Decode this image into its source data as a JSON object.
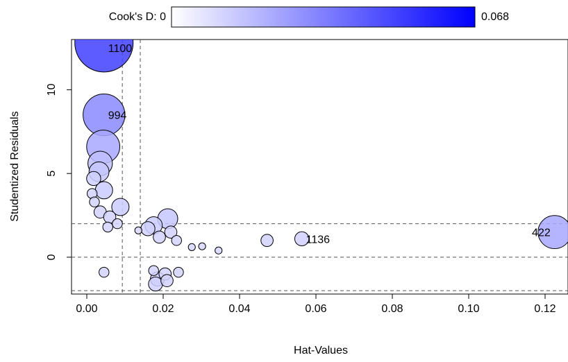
{
  "chart_data": {
    "type": "scatter",
    "xlabel": "Hat-Values",
    "ylabel": "Studentized Residuals",
    "xlim": [
      -0.004,
      0.126
    ],
    "ylim": [
      -2.2,
      13.0
    ],
    "x_ticks": [
      "0.00",
      "0.02",
      "0.04",
      "0.06",
      "0.08",
      "0.10",
      "0.12"
    ],
    "x_tick_values": [
      0,
      0.02,
      0.04,
      0.06,
      0.08,
      0.1,
      0.12
    ],
    "y_ticks": [
      "0",
      "5",
      "10"
    ],
    "y_tick_values": [
      0,
      5,
      10
    ],
    "reference_lines": {
      "horizontal": [
        -2,
        0,
        2
      ],
      "vertical": [
        0.0093,
        0.014
      ]
    },
    "color_scale": {
      "label_low": "Cook's D: 0",
      "label_high": "0.068",
      "min": 0,
      "max": 0.068,
      "color_low": "#ffffff",
      "color_high": "#0000ff"
    },
    "point_border_color": "#000000",
    "labeled_points": [
      {
        "label": "1100",
        "x": 0.0045,
        "y": 12.8,
        "cooks_d": 0.068
      },
      {
        "label": "994",
        "x": 0.0045,
        "y": 8.5,
        "cooks_d": 0.035
      },
      {
        "label": "1136",
        "x": 0.0563,
        "y": 1.1,
        "cooks_d": 0.004
      },
      {
        "label": "422",
        "x": 0.1225,
        "y": 1.5,
        "cooks_d": 0.022
      }
    ],
    "points": [
      {
        "x": 0.0043,
        "y": 6.6,
        "cooks_d": 0.022
      },
      {
        "x": 0.0035,
        "y": 5.6,
        "cooks_d": 0.012
      },
      {
        "x": 0.0032,
        "y": 5.1,
        "cooks_d": 0.008
      },
      {
        "x": 0.0018,
        "y": 4.7,
        "cooks_d": 0.004
      },
      {
        "x": 0.0045,
        "y": 4.0,
        "cooks_d": 0.006
      },
      {
        "x": 0.0088,
        "y": 3.0,
        "cooks_d": 0.006
      },
      {
        "x": 0.0014,
        "y": 3.8,
        "cooks_d": 0.002
      },
      {
        "x": 0.002,
        "y": 3.3,
        "cooks_d": 0.002
      },
      {
        "x": 0.0035,
        "y": 2.7,
        "cooks_d": 0.003
      },
      {
        "x": 0.006,
        "y": 2.4,
        "cooks_d": 0.003
      },
      {
        "x": 0.016,
        "y": 1.7,
        "cooks_d": 0.004
      },
      {
        "x": 0.0175,
        "y": 1.9,
        "cooks_d": 0.006
      },
      {
        "x": 0.0212,
        "y": 2.3,
        "cooks_d": 0.008
      },
      {
        "x": 0.022,
        "y": 1.5,
        "cooks_d": 0.003
      },
      {
        "x": 0.019,
        "y": 1.2,
        "cooks_d": 0.003
      },
      {
        "x": 0.0235,
        "y": 1.0,
        "cooks_d": 0.002
      },
      {
        "x": 0.0135,
        "y": 1.6,
        "cooks_d": 0.001
      },
      {
        "x": 0.0275,
        "y": 0.6,
        "cooks_d": 0.001
      },
      {
        "x": 0.0302,
        "y": 0.65,
        "cooks_d": 0.001
      },
      {
        "x": 0.0345,
        "y": 0.4,
        "cooks_d": 0.001
      },
      {
        "x": 0.0472,
        "y": 1.0,
        "cooks_d": 0.003
      },
      {
        "x": 0.0175,
        "y": -0.8,
        "cooks_d": 0.002
      },
      {
        "x": 0.0185,
        "y": -1.3,
        "cooks_d": 0.004
      },
      {
        "x": 0.0205,
        "y": -1.0,
        "cooks_d": 0.003
      },
      {
        "x": 0.018,
        "y": -1.6,
        "cooks_d": 0.004
      },
      {
        "x": 0.024,
        "y": -0.9,
        "cooks_d": 0.002
      },
      {
        "x": 0.021,
        "y": -1.4,
        "cooks_d": 0.003
      },
      {
        "x": 0.0045,
        "y": -0.9,
        "cooks_d": 0.002
      },
      {
        "x": 0.008,
        "y": 2.0,
        "cooks_d": 0.002
      },
      {
        "x": 0.0055,
        "y": 1.8,
        "cooks_d": 0.002
      }
    ]
  }
}
